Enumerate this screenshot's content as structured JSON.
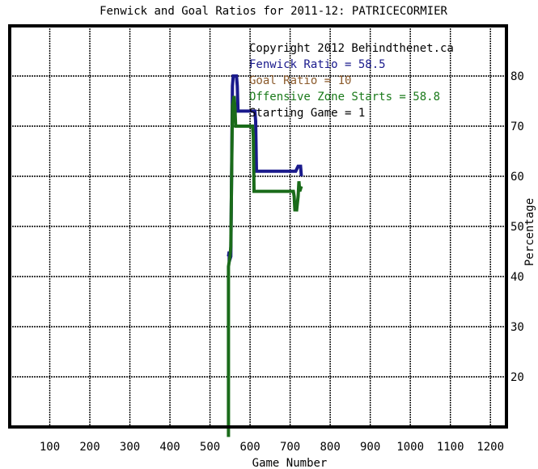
{
  "chart_data": {
    "type": "line",
    "title": "Fenwick and Goal Ratios for 2011-12: PATRICECORMIER",
    "xlabel": "Game Number",
    "ylabel": "Percentage",
    "xlim": [
      0,
      1240
    ],
    "ylim": [
      10,
      90
    ],
    "x_ticks": [
      100,
      200,
      300,
      400,
      500,
      600,
      700,
      800,
      900,
      1000,
      1100,
      1200
    ],
    "y_ticks": [
      20,
      30,
      40,
      50,
      60,
      70,
      80
    ],
    "grid": true,
    "legend": {
      "position": "top-right",
      "lines": [
        {
          "text": "Copyright 2012 Behindthenet.ca",
          "color": "#000000"
        },
        {
          "text": "Fenwick Ratio = 58.5",
          "color": "#1a1a8c"
        },
        {
          "text": "Goal Ratio = 10",
          "color": "#8b5a2b"
        },
        {
          "text": "Offensive Zone Starts = 58.8",
          "color": "#1a7a1a"
        },
        {
          "text": "Starting Game = 1",
          "color": "#000000"
        }
      ]
    },
    "series": [
      {
        "name": "Fenwick Ratio",
        "color": "#1a1a8c",
        "points": [
          [
            546,
            44
          ],
          [
            548,
            45
          ],
          [
            548,
            43
          ],
          [
            552,
            44
          ],
          [
            556,
            78
          ],
          [
            558,
            80
          ],
          [
            566,
            80
          ],
          [
            568,
            78
          ],
          [
            570,
            73
          ],
          [
            612,
            73
          ],
          [
            614,
            71
          ],
          [
            616,
            61
          ],
          [
            700,
            61
          ],
          [
            714,
            61
          ],
          [
            720,
            62
          ],
          [
            726,
            62
          ],
          [
            728,
            60
          ]
        ]
      },
      {
        "name": "Offensive Zone Starts",
        "color": "#1a6b1a",
        "points": [
          [
            546,
            8
          ],
          [
            546,
            42
          ],
          [
            550,
            44
          ],
          [
            552,
            46
          ],
          [
            556,
            74
          ],
          [
            560,
            76
          ],
          [
            562,
            74
          ],
          [
            564,
            70
          ],
          [
            606,
            70
          ],
          [
            608,
            68
          ],
          [
            610,
            57
          ],
          [
            660,
            57
          ],
          [
            708,
            57
          ],
          [
            710,
            56
          ],
          [
            712,
            53
          ],
          [
            714,
            55
          ],
          [
            716,
            53
          ],
          [
            720,
            56
          ],
          [
            722,
            59
          ],
          [
            724,
            57
          ],
          [
            728,
            58
          ]
        ]
      }
    ]
  }
}
